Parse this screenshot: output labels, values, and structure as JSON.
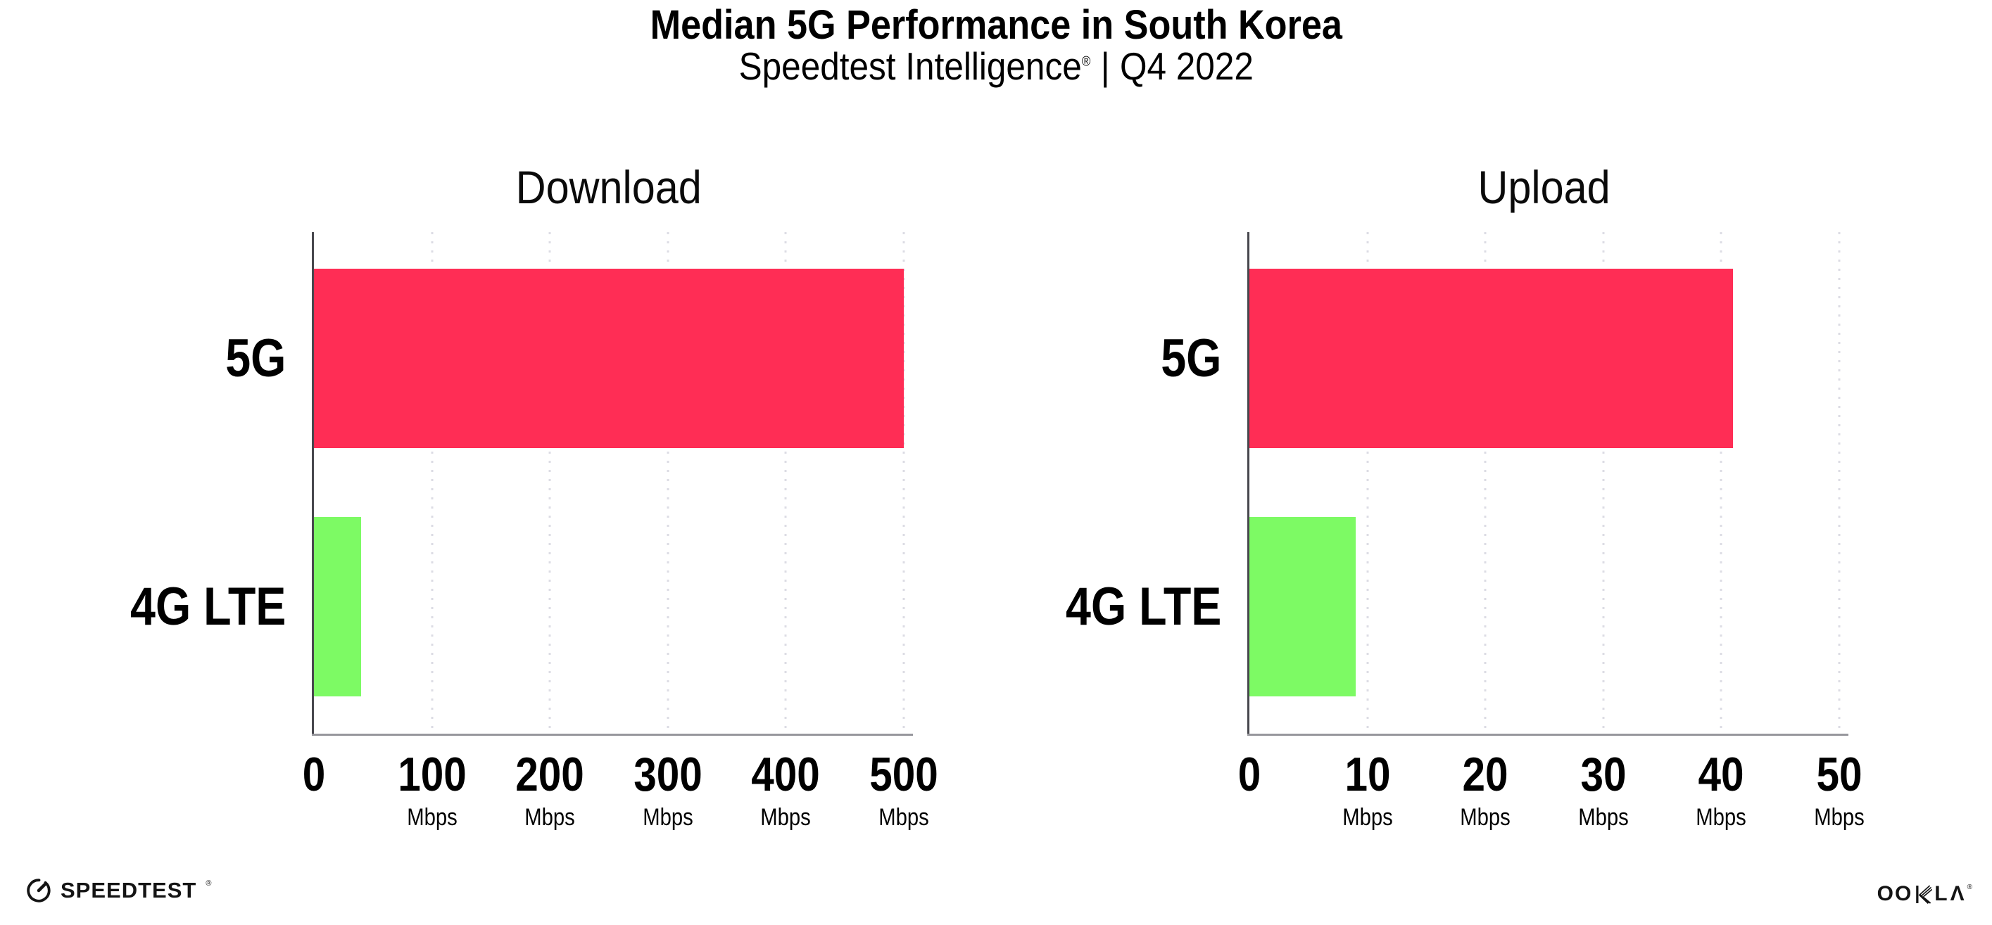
{
  "page": {
    "background": "#ffffff"
  },
  "header": {
    "title": "Median 5G Performance in South Korea",
    "subtitle": {
      "brand": "Speedtest Intelligence",
      "registered_mark": "®",
      "separator": "|",
      "period": "Q4 2022"
    }
  },
  "chart_data": [
    {
      "type": "bar",
      "orientation": "horizontal",
      "title": "Download",
      "categories": [
        "5G",
        "4G LTE"
      ],
      "values": [
        500,
        40
      ],
      "unit": "Mbps",
      "xlim": [
        0,
        500
      ],
      "xticks": [
        0,
        100,
        200,
        300,
        400,
        500
      ],
      "xtick_unit_on_zero": false,
      "bar_colors": [
        "#ff2d55",
        "#7dfa64"
      ],
      "grid": "dotted-vertical-gridlines",
      "legend": "none"
    },
    {
      "type": "bar",
      "orientation": "horizontal",
      "title": "Upload",
      "categories": [
        "5G",
        "4G LTE"
      ],
      "values": [
        41,
        9
      ],
      "unit": "Mbps",
      "xlim": [
        0,
        50
      ],
      "xticks": [
        0,
        10,
        20,
        30,
        40,
        50
      ],
      "xtick_unit_on_zero": false,
      "bar_colors": [
        "#ff2d55",
        "#7dfa64"
      ],
      "grid": "dotted-vertical-gridlines",
      "legend": "none"
    }
  ],
  "colors": {
    "bar_5g": "#ff2d55",
    "bar_4g_lte": "#7dfa64",
    "gridline": "#dcdce4",
    "axis_left_spine": "#47474d",
    "axis_bottom_spine": "#97979c",
    "text": "#000000",
    "logo": "#141414"
  },
  "footer": {
    "speedtest": {
      "icon": "speedtest-gauge-icon",
      "label": "SPEEDTEST",
      "mark": "®"
    },
    "ookla": {
      "label": "OOKLA",
      "display": {
        "oo": "OO",
        "k": "K",
        "l": "L",
        "a": "Λ"
      },
      "mark": "®"
    }
  }
}
